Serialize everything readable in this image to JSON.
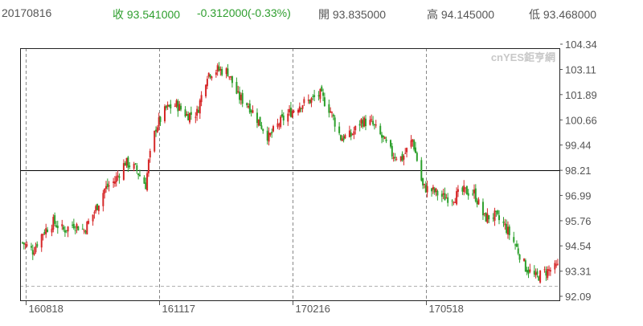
{
  "header": {
    "date": "20170816",
    "close_label": "收",
    "close_value": "93.541000",
    "change": "-0.312000(-0.33%)",
    "open_label": "開",
    "open_value": "93.835000",
    "high_label": "高",
    "high_value": "94.145000",
    "low_label": "低",
    "low_value": "93.468000"
  },
  "watermark": "cnYES鉅亨網",
  "colors": {
    "up": "#d62728",
    "down": "#2ca02c",
    "text": "#555555",
    "header_change": "#2e9e2e",
    "grid": "#888888",
    "reference": "#000000"
  },
  "chart_data": {
    "type": "candlestick",
    "y_ticks": [
      "104.34",
      "103.11",
      "101.89",
      "100.66",
      "99.44",
      "98.21",
      "96.99",
      "95.76",
      "94.54",
      "93.31",
      "92.09"
    ],
    "y_range": [
      92.09,
      104.34
    ],
    "reference_line": 98.21,
    "x_labels": [
      "160818",
      "161117",
      "170216",
      "170518"
    ],
    "x_range": [
      "2016-08-16",
      "2017-08-16"
    ],
    "grid": "vertical dashed at x labels, horizontal dashed at bottom",
    "series_close": [
      [
        "2016-08-16",
        94.7
      ],
      [
        "2016-08-23",
        94.3
      ],
      [
        "2016-08-30",
        95.2
      ],
      [
        "2016-09-06",
        95.7
      ],
      [
        "2016-09-13",
        95.3
      ],
      [
        "2016-09-20",
        95.6
      ],
      [
        "2016-09-27",
        95.3
      ],
      [
        "2016-10-04",
        96.2
      ],
      [
        "2016-10-11",
        97.3
      ],
      [
        "2016-10-18",
        97.7
      ],
      [
        "2016-10-25",
        98.6
      ],
      [
        "2016-11-01",
        98.3
      ],
      [
        "2016-11-08",
        97.5
      ],
      [
        "2016-11-10",
        98.6
      ],
      [
        "2016-11-15",
        100.3
      ],
      [
        "2016-11-22",
        101.2
      ],
      [
        "2016-11-29",
        101.4
      ],
      [
        "2016-12-06",
        100.9
      ],
      [
        "2016-12-13",
        101.0
      ],
      [
        "2016-12-20",
        102.9
      ],
      [
        "2016-12-27",
        103.1
      ],
      [
        "2017-01-03",
        103.0
      ],
      [
        "2017-01-10",
        101.8
      ],
      [
        "2017-01-17",
        101.4
      ],
      [
        "2017-01-24",
        100.6
      ],
      [
        "2017-01-31",
        99.8
      ],
      [
        "2017-02-07",
        100.5
      ],
      [
        "2017-02-14",
        101.0
      ],
      [
        "2017-02-21",
        101.4
      ],
      [
        "2017-02-28",
        101.6
      ],
      [
        "2017-03-07",
        101.9
      ],
      [
        "2017-03-14",
        101.1
      ],
      [
        "2017-03-21",
        99.8
      ],
      [
        "2017-03-28",
        99.9
      ],
      [
        "2017-04-04",
        100.6
      ],
      [
        "2017-04-11",
        100.5
      ],
      [
        "2017-04-18",
        99.8
      ],
      [
        "2017-04-25",
        99.0
      ],
      [
        "2017-05-02",
        98.8
      ],
      [
        "2017-05-09",
        99.7
      ],
      [
        "2017-05-16",
        97.4
      ],
      [
        "2017-05-23",
        97.2
      ],
      [
        "2017-05-30",
        96.9
      ],
      [
        "2017-06-06",
        96.9
      ],
      [
        "2017-06-13",
        97.2
      ],
      [
        "2017-06-20",
        97.1
      ],
      [
        "2017-06-27",
        95.9
      ],
      [
        "2017-07-04",
        96.0
      ],
      [
        "2017-07-11",
        95.5
      ],
      [
        "2017-07-18",
        94.6
      ],
      [
        "2017-07-25",
        93.5
      ],
      [
        "2017-08-01",
        93.0
      ],
      [
        "2017-08-08",
        93.3
      ],
      [
        "2017-08-16",
        93.5
      ]
    ]
  }
}
